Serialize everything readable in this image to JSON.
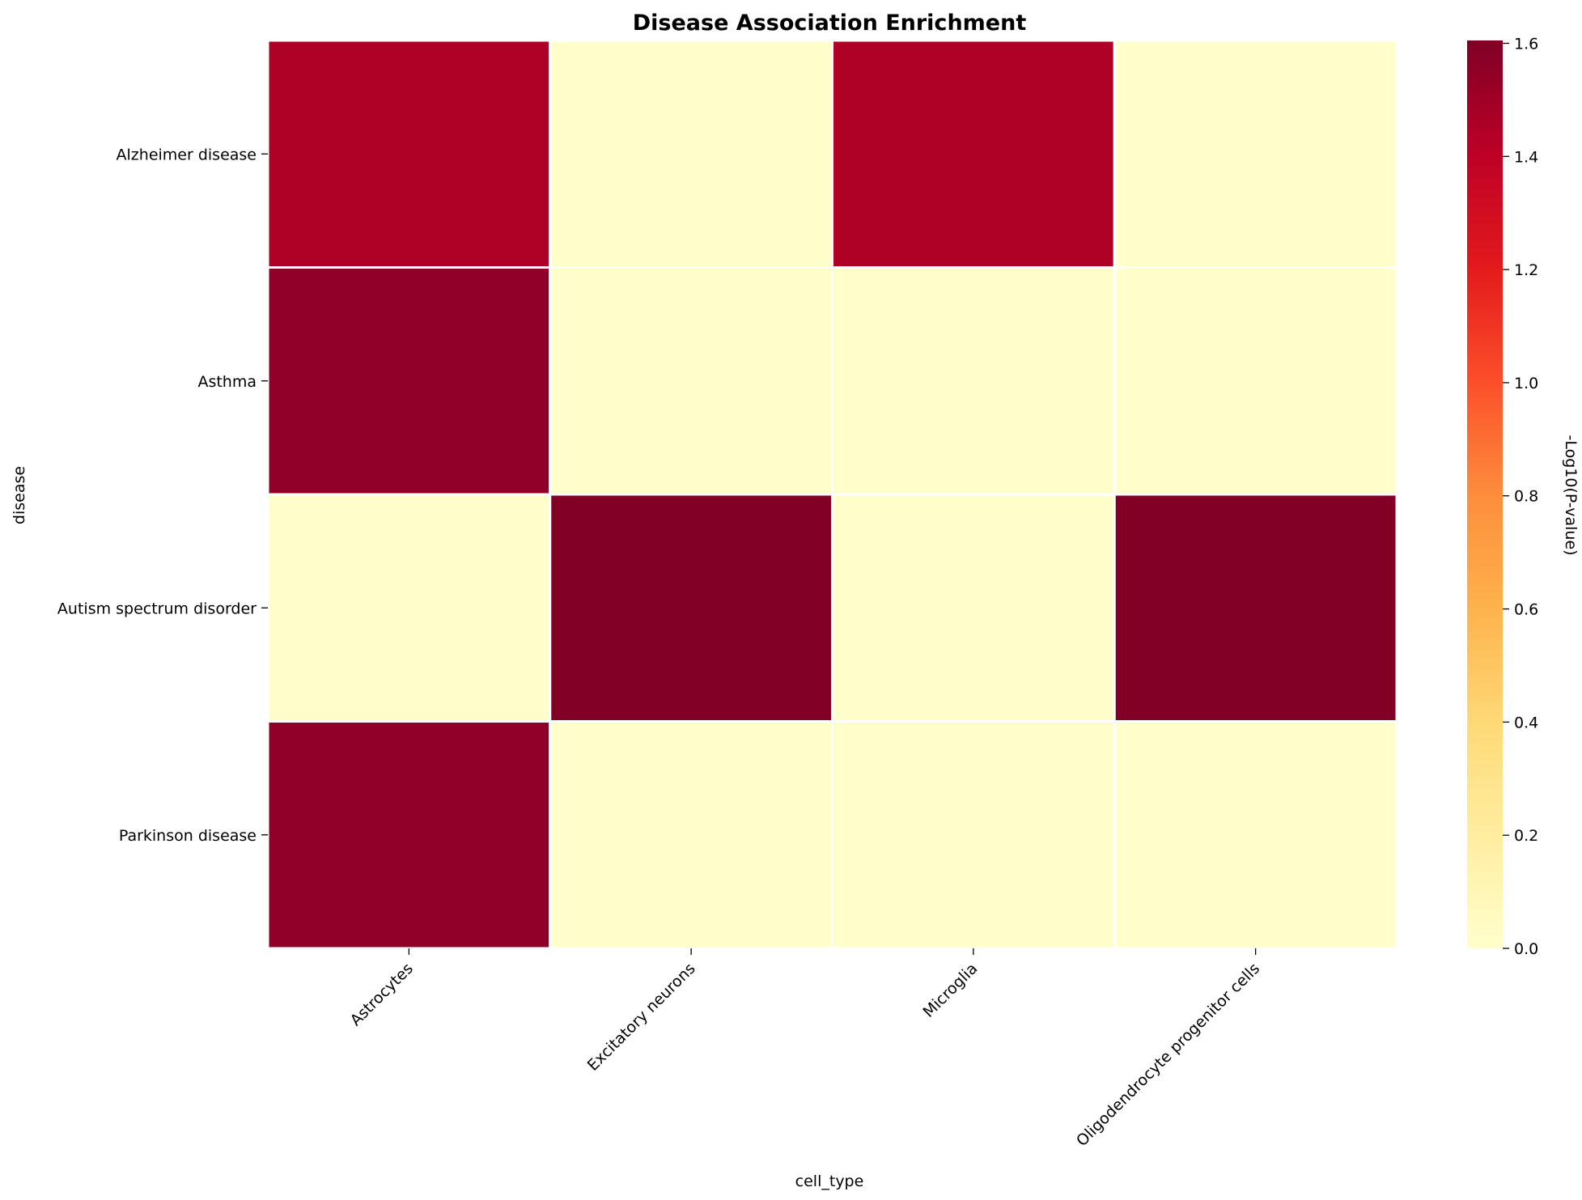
{
  "chart_data": {
    "type": "heatmap",
    "title": "Disease Association Enrichment",
    "xlabel": "cell_type",
    "ylabel": "disease",
    "x_categories": [
      "Astrocytes",
      "Excitatory neurons",
      "Microglia",
      "Oligodendrocyte progenitor cells"
    ],
    "y_categories": [
      "Alzheimer disease",
      "Asthma",
      "Autism spectrum disorder",
      "Parkinson disease"
    ],
    "values": [
      [
        1.45,
        0.0,
        1.45,
        0.0
      ],
      [
        1.55,
        0.0,
        0.0,
        0.0
      ],
      [
        0.0,
        1.6,
        0.0,
        1.6
      ],
      [
        1.55,
        0.0,
        0.0,
        0.0
      ]
    ],
    "colorbar": {
      "label": "-Log10(P-value)",
      "vmin": 0.0,
      "vmax": 1.605,
      "ticks": [
        0.0,
        0.2,
        0.4,
        0.6,
        0.8,
        1.0,
        1.2,
        1.4,
        1.6
      ],
      "tick_labels": [
        "0.0",
        "0.2",
        "0.4",
        "0.6",
        "0.8",
        "1.0",
        "1.2",
        "1.4",
        "1.6"
      ],
      "colormap": "YlOrRd",
      "colormap_stops": [
        "#ffffcc",
        "#ffeda0",
        "#fed976",
        "#feb24c",
        "#fd8d3c",
        "#fc4e2a",
        "#e31a1c",
        "#bd0026",
        "#800026"
      ]
    },
    "grid_line_color": "#ffffff"
  }
}
